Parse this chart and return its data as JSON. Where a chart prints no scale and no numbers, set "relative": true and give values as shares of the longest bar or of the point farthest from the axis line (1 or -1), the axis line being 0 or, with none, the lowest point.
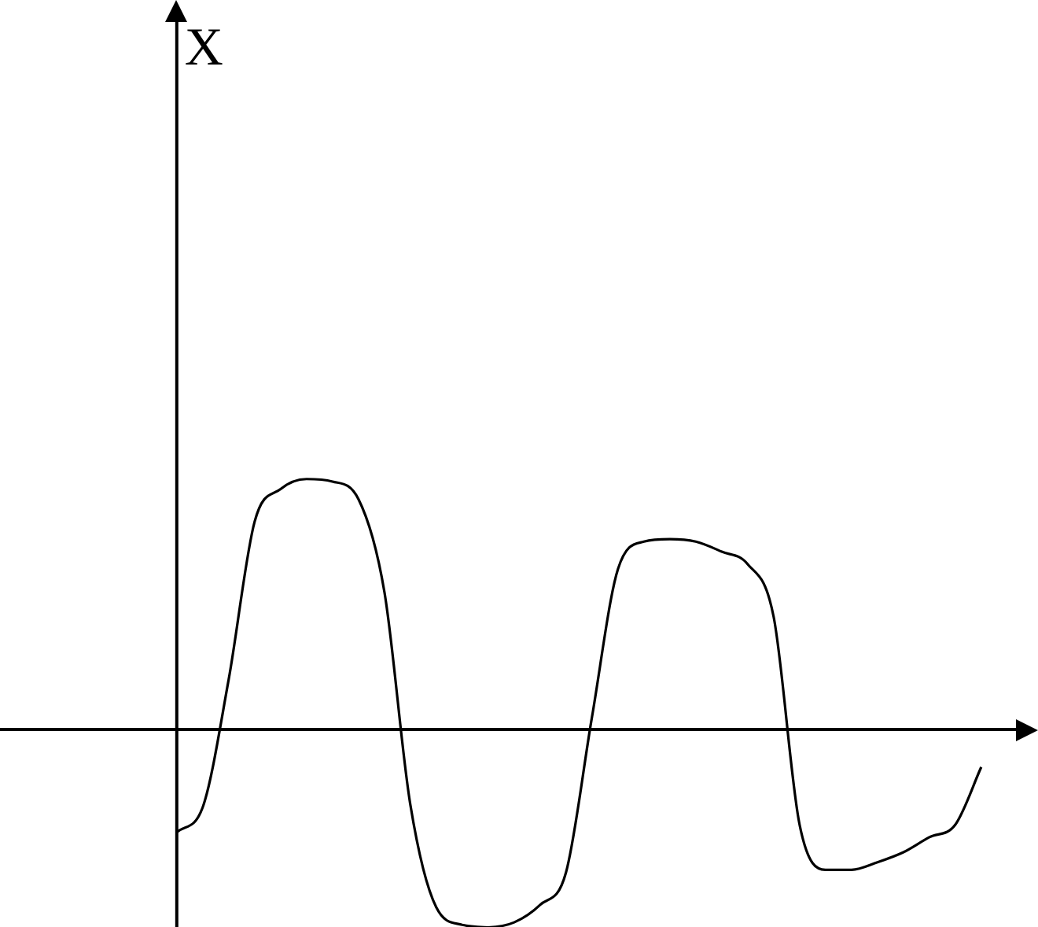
{
  "chart_data": {
    "type": "line",
    "annotations": [
      "X"
    ],
    "relative": true,
    "tick_labels": false,
    "color": "#000000",
    "categories": [
      null,
      null,
      null,
      null,
      null,
      null,
      null,
      null,
      null,
      null,
      null,
      null,
      null,
      null,
      null,
      null,
      null,
      null,
      null,
      null,
      null,
      null,
      null,
      null,
      null,
      null,
      null,
      null,
      null,
      null,
      null,
      null
    ],
    "values": [
      -0.41,
      -0.31,
      0.2,
      0.83,
      0.96,
      1.0,
      0.99,
      0.92,
      0.55,
      -0.3,
      -0.71,
      -0.78,
      -0.79,
      -0.77,
      -0.7,
      -0.57,
      0.05,
      0.64,
      0.75,
      0.76,
      0.75,
      0.71,
      0.66,
      0.45,
      -0.38,
      -0.56,
      -0.56,
      -0.53,
      -0.49,
      -0.43,
      -0.38,
      -0.15
    ]
  }
}
